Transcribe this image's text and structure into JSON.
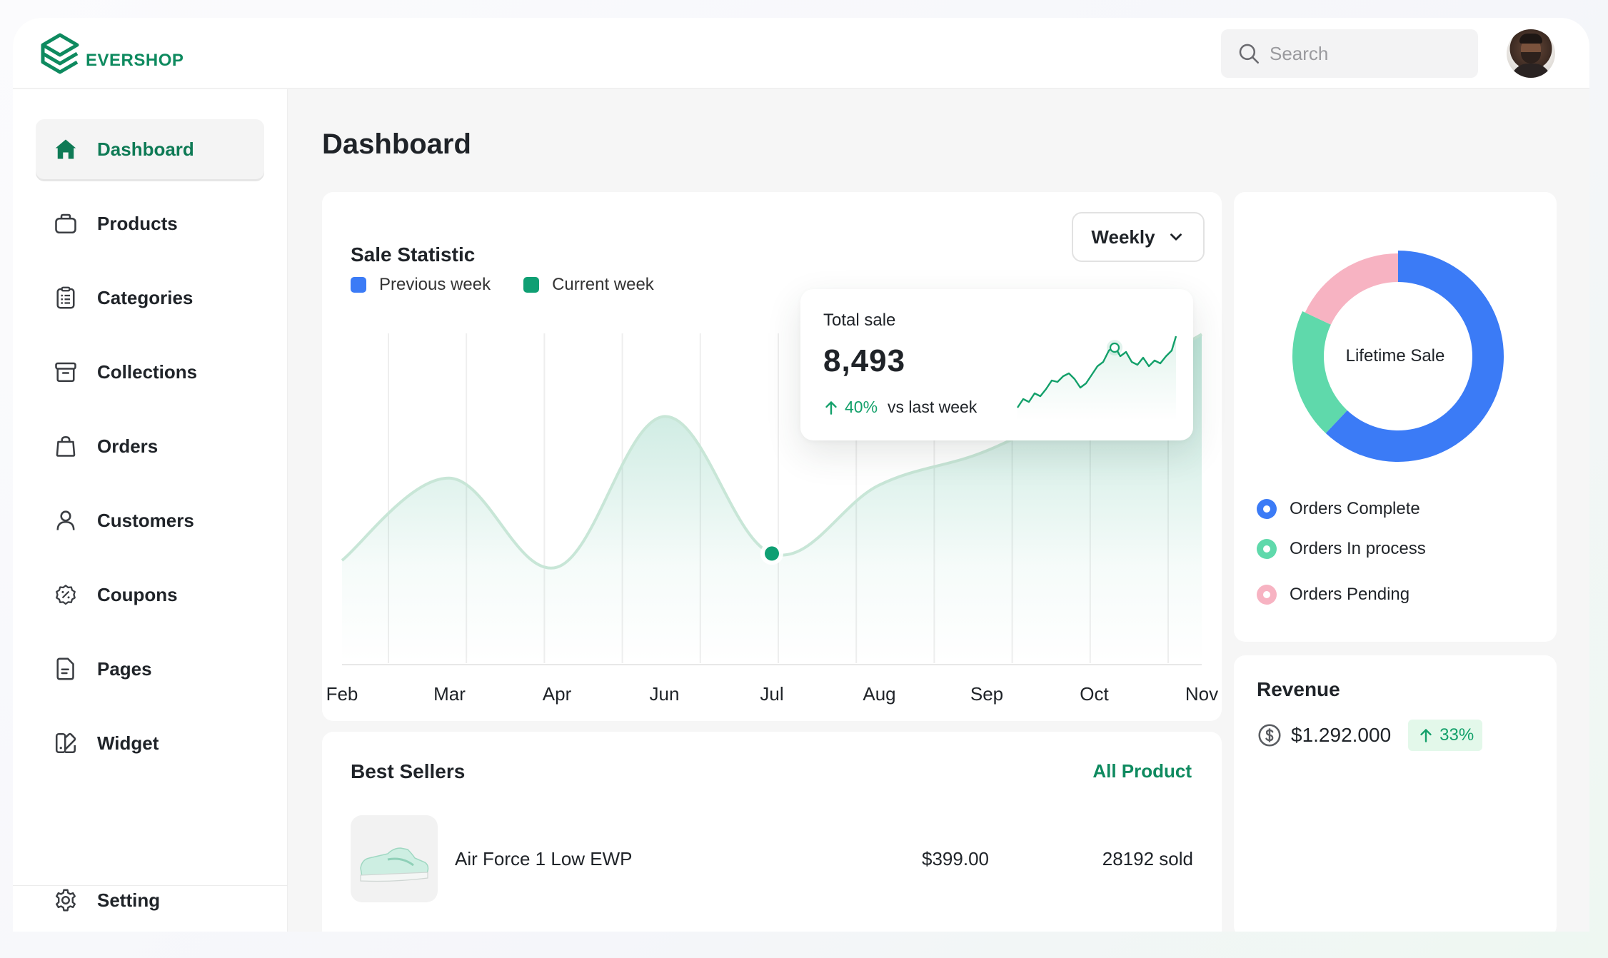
{
  "brand": {
    "name": "EVERSHOP",
    "color": "#0e8a5f"
  },
  "search": {
    "placeholder": "Search",
    "value": ""
  },
  "sidebar": {
    "items": [
      {
        "label": "Dashboard",
        "icon": "home-icon",
        "active": true
      },
      {
        "label": "Products",
        "icon": "box-icon"
      },
      {
        "label": "Categories",
        "icon": "clipboard-list-icon"
      },
      {
        "label": "Collections",
        "icon": "archive-icon"
      },
      {
        "label": "Orders",
        "icon": "shopping-bag-icon"
      },
      {
        "label": "Customers",
        "icon": "user-icon"
      },
      {
        "label": "Coupons",
        "icon": "coupon-icon"
      },
      {
        "label": "Pages",
        "icon": "page-icon"
      },
      {
        "label": "Widget",
        "icon": "widget-icon"
      }
    ],
    "footer": {
      "label": "Setting",
      "icon": "gear-icon"
    }
  },
  "page": {
    "title": "Dashboard"
  },
  "sale_statistic": {
    "title": "Sale Statistic",
    "period": "Weekly",
    "legend": [
      {
        "label": "Previous week",
        "color": "#3b7bf6"
      },
      {
        "label": "Current week",
        "color": "#0f9f73"
      }
    ],
    "tooltip": {
      "title": "Total sale",
      "value": "8,493",
      "change": "40%",
      "comparison": "vs last week"
    }
  },
  "chart_data": {
    "type": "area",
    "categories": [
      "Feb",
      "Mar",
      "Apr",
      "Jun",
      "Jul",
      "Aug",
      "Sep",
      "Oct",
      "Nov"
    ],
    "values": [
      30,
      54,
      28,
      72,
      32,
      52,
      62,
      78,
      96
    ],
    "highlighted_point": "Jul",
    "grid": true,
    "color": "#0f9f73"
  },
  "best_sellers": {
    "title": "Best Sellers",
    "link": "All Product",
    "products": [
      {
        "name": "Air Force 1 Low EWP",
        "price": "$399.00",
        "sold": "28192 sold"
      }
    ]
  },
  "lifetime_sale": {
    "title": "Lifetime Sale",
    "segments": [
      {
        "label": "Orders Complete",
        "value": 62,
        "color": "#3b7bf6"
      },
      {
        "label": "Orders In process",
        "value": 20,
        "color": "#5fd9ab"
      },
      {
        "label": "Orders Pending",
        "value": 18,
        "color": "#f7b3c2"
      }
    ]
  },
  "revenue": {
    "title": "Revenue",
    "amount": "$1.292.000",
    "change": "33%"
  }
}
